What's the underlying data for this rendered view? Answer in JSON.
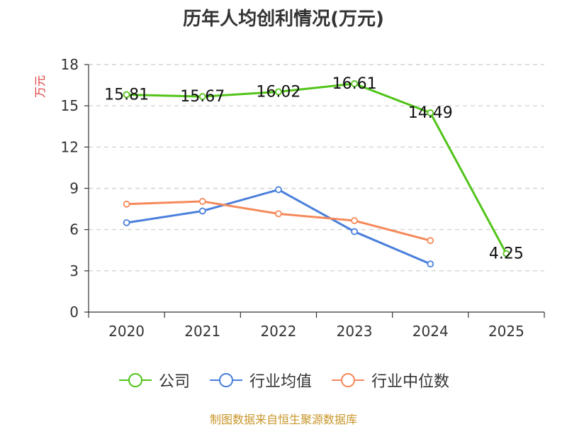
{
  "chart_data": {
    "type": "line",
    "title": "历年人均创利情况(万元)",
    "ylabel": "万元",
    "xlabel": "",
    "categories": [
      "2020",
      "2021",
      "2022",
      "2023",
      "2024",
      "2025"
    ],
    "ylim": [
      0,
      18
    ],
    "yticks": [
      0,
      3,
      6,
      9,
      12,
      15,
      18
    ],
    "series": [
      {
        "name": "公司",
        "color": "#52c41a",
        "values": [
          15.81,
          15.67,
          16.02,
          16.61,
          14.49,
          4.25
        ],
        "labels": [
          "15.81",
          "15.67",
          "16.02",
          "16.61",
          "14.49",
          "4.25"
        ]
      },
      {
        "name": "行业均值",
        "color": "#4a7fdc",
        "values": [
          6.5,
          7.35,
          8.9,
          5.85,
          3.5,
          null
        ]
      },
      {
        "name": "行业中位数",
        "color": "#f5895a",
        "values": [
          7.85,
          8.05,
          7.15,
          6.65,
          5.2,
          null
        ]
      }
    ],
    "grid": "horizontal-dashed",
    "legend_position": "bottom"
  },
  "source": "制图数据来自恒生聚源数据库"
}
